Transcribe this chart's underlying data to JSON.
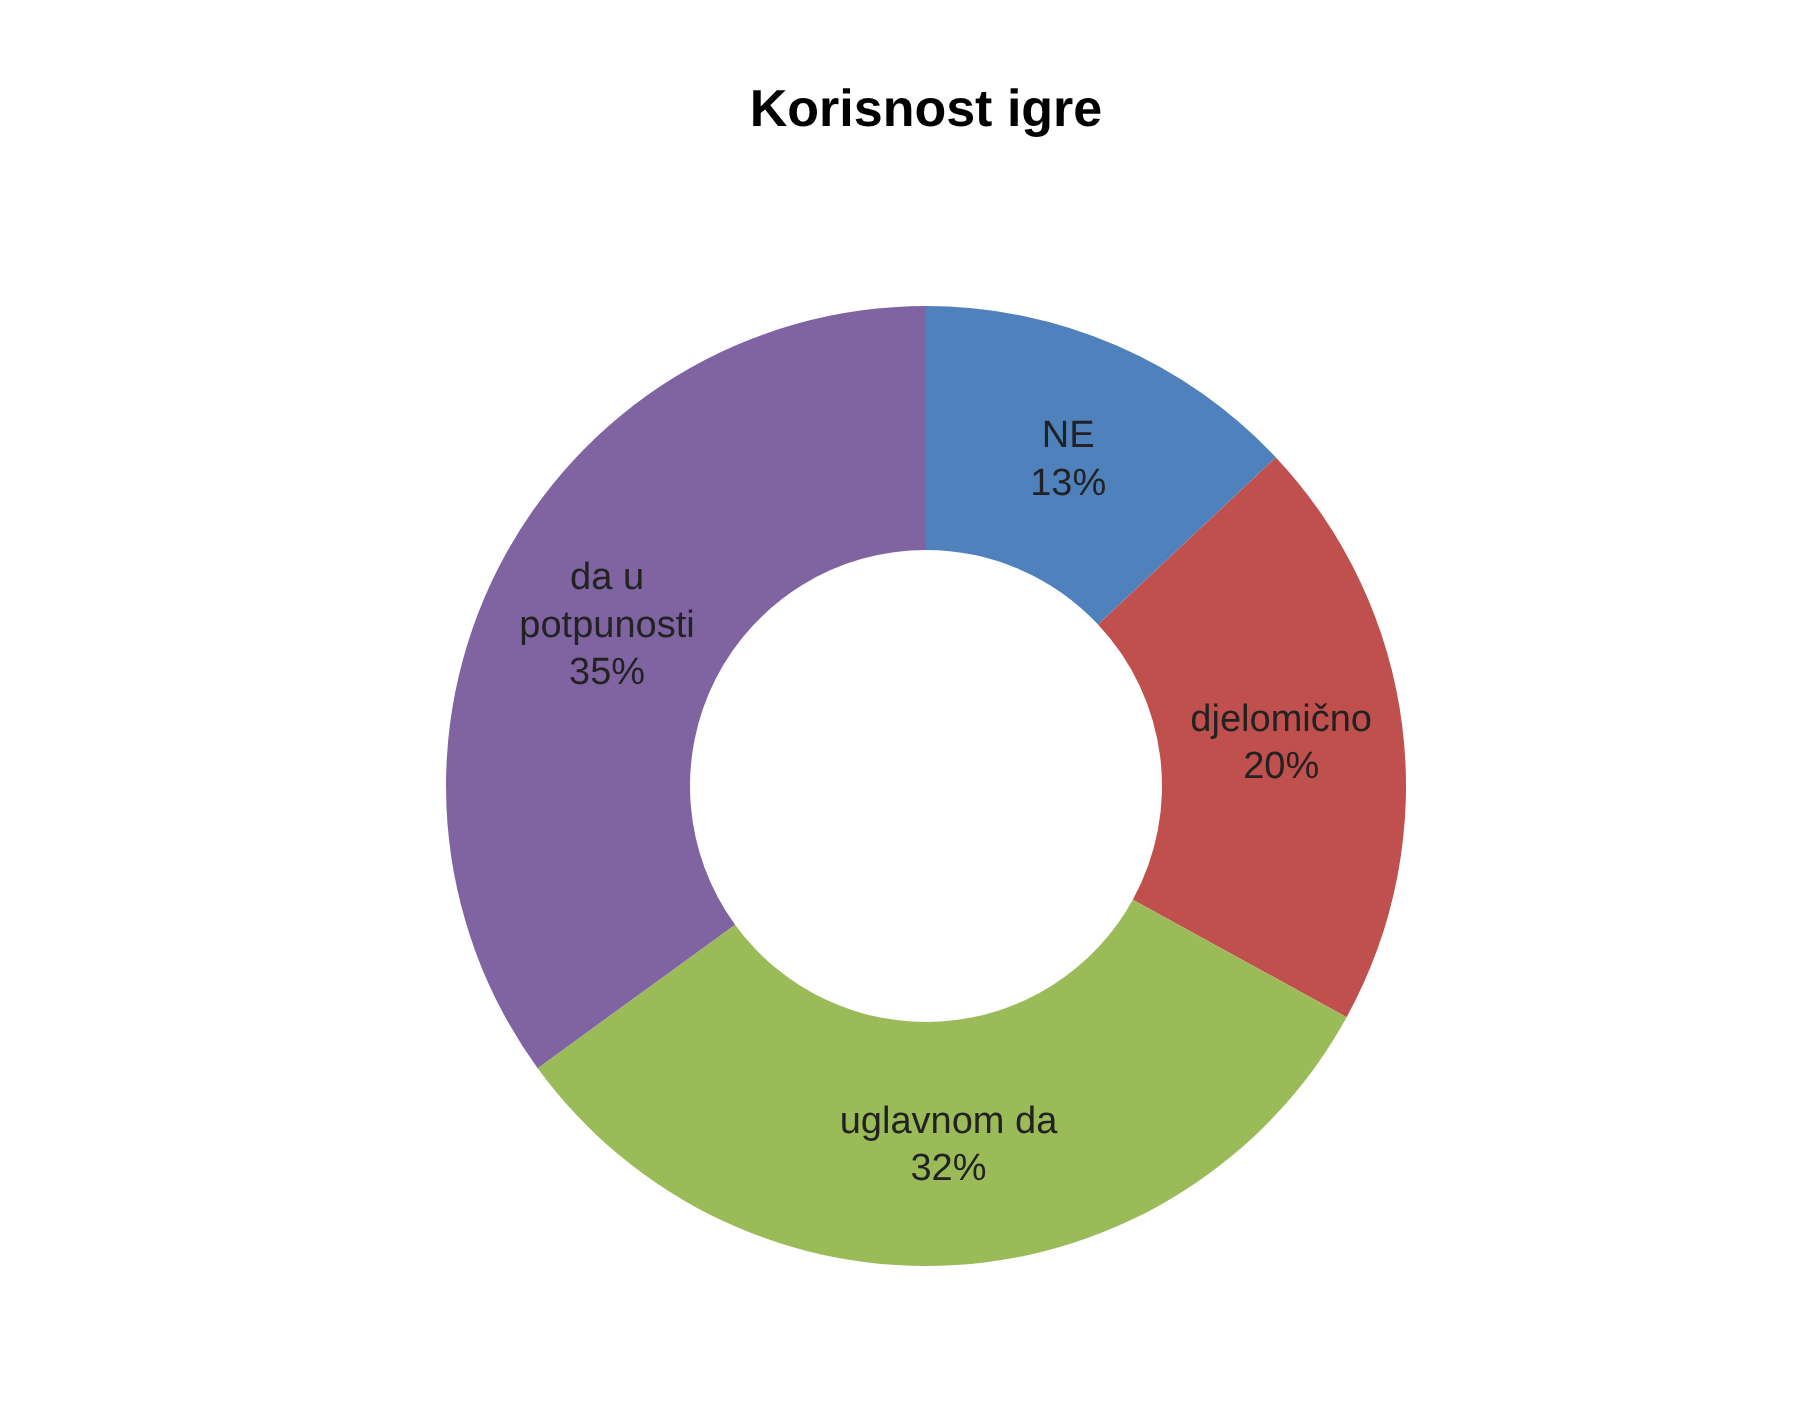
{
  "chart_data": {
    "type": "donut",
    "title": "Korisnost igre",
    "categories": [
      "NE",
      "djelomično",
      "uglavnom da",
      "da u potpunosti"
    ],
    "values": [
      13,
      20,
      32,
      35
    ],
    "value_labels": [
      "13%",
      "20%",
      "32%",
      "35%"
    ],
    "colors": [
      "#4f81bd",
      "#c0504d",
      "#9bbb59",
      "#8064a2"
    ]
  }
}
